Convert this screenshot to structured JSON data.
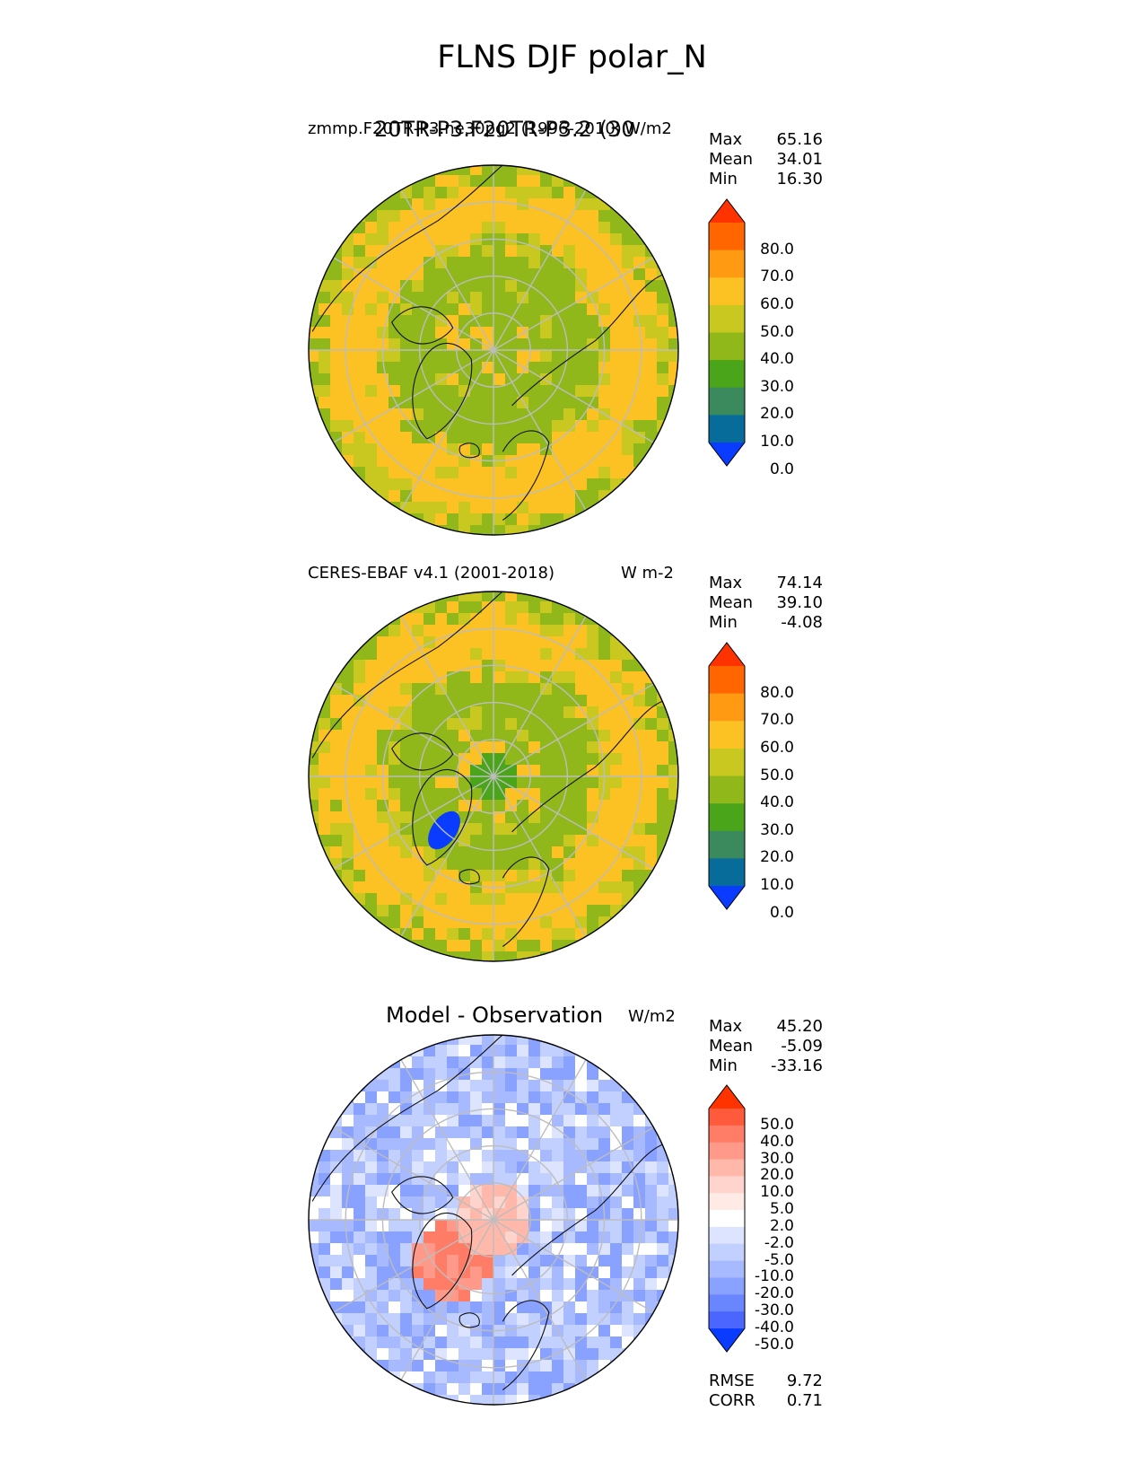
{
  "figure": {
    "title": "FLNS DJF polar_N"
  },
  "panels": [
    {
      "left_title_a": "zmmp.F20TR-P3.ne30pg2 (1996-2010)",
      "left_title_b": "20TR-P3.F20TR-P3.2 (30",
      "center_title": "",
      "units": "W/m2",
      "stats": {
        "max_label": "Max",
        "max": "65.16",
        "mean_label": "Mean",
        "mean": "34.01",
        "min_label": "Min",
        "min": "16.30"
      },
      "colorbar": {
        "tick_labels": [
          "80.0",
          "70.0",
          "60.0",
          "50.0",
          "40.0",
          "30.0",
          "20.0",
          "10.0",
          "0.0"
        ],
        "colors": [
          "#ff3300",
          "#ff6600",
          "#ff9a12",
          "#fcc224",
          "#c8c820",
          "#90b81a",
          "#4aa51a",
          "#3a8a5e",
          "#076c9a",
          "#0a3cff"
        ]
      }
    },
    {
      "left_title_a": "CERES-EBAF v4.1 (2001-2018)",
      "left_title_b": "",
      "center_title": "",
      "units": "W m-2",
      "stats": {
        "max_label": "Max",
        "max": "74.14",
        "mean_label": "Mean",
        "mean": "39.10",
        "min_label": "Min",
        "min": "-4.08"
      },
      "colorbar": {
        "tick_labels": [
          "80.0",
          "70.0",
          "60.0",
          "50.0",
          "40.0",
          "30.0",
          "20.0",
          "10.0",
          "0.0"
        ],
        "colors": [
          "#ff3300",
          "#ff6600",
          "#ff9a12",
          "#fcc224",
          "#c8c820",
          "#90b81a",
          "#4aa51a",
          "#3a8a5e",
          "#076c9a",
          "#0a3cff"
        ]
      }
    },
    {
      "left_title_a": "",
      "left_title_b": "",
      "center_title": "Model - Observation",
      "units": "W/m2",
      "stats": {
        "max_label": "Max",
        "max": "45.20",
        "mean_label": "Mean",
        "mean": "-5.09",
        "min_label": "Min",
        "min": "-33.16"
      },
      "colorbar": {
        "tick_labels": [
          "50.0",
          "40.0",
          "30.0",
          "20.0",
          "10.0",
          "5.0",
          "2.0",
          "-2.0",
          "-5.0",
          "-10.0",
          "-20.0",
          "-30.0",
          "-40.0",
          "-50.0"
        ],
        "colors": [
          "#ff3300",
          "#ff5a3c",
          "#ff7c66",
          "#ff9a8a",
          "#ffb8aa",
          "#ffd4cc",
          "#ffeae6",
          "#ffffff",
          "#dce4ff",
          "#c2d0ff",
          "#a8baff",
          "#8aa2ff",
          "#6a86ff",
          "#4a66ff",
          "#0a3cff"
        ]
      },
      "metrics": {
        "rmse_label": "RMSE",
        "rmse": "9.72",
        "corr_label": "CORR",
        "corr": "0.71"
      }
    }
  ],
  "chart_data": [
    {
      "type": "heatmap",
      "projection": "north polar stereographic",
      "title": "zmmp.F20TR-P3.ne30pg2 (1996-2010)",
      "units": "W/m2",
      "summary": {
        "max": 65.16,
        "mean": 34.01,
        "min": 16.3
      },
      "colorbar_levels": [
        0,
        10,
        20,
        30,
        40,
        50,
        60,
        70,
        80
      ],
      "extend": "both"
    },
    {
      "type": "heatmap",
      "projection": "north polar stereographic",
      "title": "CERES-EBAF v4.1 (2001-2018)",
      "units": "W m-2",
      "summary": {
        "max": 74.14,
        "mean": 39.1,
        "min": -4.08
      },
      "colorbar_levels": [
        0,
        10,
        20,
        30,
        40,
        50,
        60,
        70,
        80
      ],
      "extend": "both"
    },
    {
      "type": "heatmap",
      "projection": "north polar stereographic",
      "title": "Model - Observation",
      "units": "W/m2",
      "summary": {
        "max": 45.2,
        "mean": -5.09,
        "min": -33.16
      },
      "colorbar_levels": [
        -50,
        -40,
        -30,
        -20,
        -10,
        -5,
        -2,
        2,
        5,
        10,
        20,
        30,
        40,
        50
      ],
      "extend": "both",
      "rmse": 9.72,
      "corr": 0.71
    }
  ]
}
